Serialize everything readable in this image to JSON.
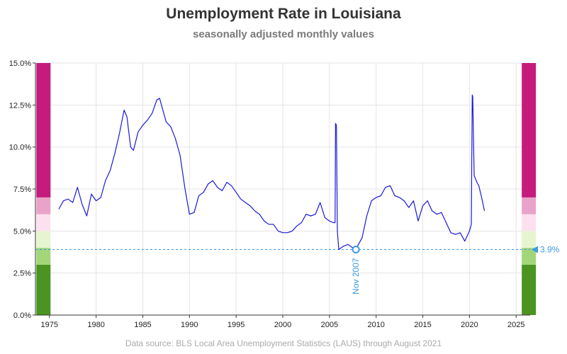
{
  "header": {
    "title": "Unemployment Rate in Louisiana",
    "subtitle": "seasonally adjusted monthly values"
  },
  "footer": {
    "source": "Data source: BLS Local Area Unemployment Statistics (LAUS) through August 2021"
  },
  "colors": {
    "line": "#1a1adb",
    "reference": "#3b9be8",
    "grid": "#e4e4e4",
    "band_colors": [
      "#4b9421",
      "#a3d679",
      "#e6f5d0",
      "#fde0ef",
      "#e9a3c9",
      "#c51b7d"
    ]
  },
  "chart_data": {
    "type": "line",
    "title": "Unemployment Rate in Louisiana",
    "subtitle": "seasonally adjusted monthly values",
    "xlabel": "",
    "ylabel": "",
    "xlim": [
      1973.5,
      2026.5
    ],
    "ylim": [
      0,
      15
    ],
    "x_ticks": [
      1975,
      1980,
      1985,
      1990,
      1995,
      2000,
      2005,
      2010,
      2015,
      2020,
      2025
    ],
    "y_ticks": [
      0,
      2.5,
      5,
      7.5,
      10,
      12.5,
      15
    ],
    "y_tick_labels": [
      "0.0%",
      "2.5%",
      "5.0%",
      "7.5%",
      "10.0%",
      "12.5%",
      "15.0%"
    ],
    "grid": true,
    "legend": "none",
    "color_bands": [
      {
        "from": 0,
        "to": 3,
        "color": "#4b9421"
      },
      {
        "from": 3,
        "to": 4,
        "color": "#a3d679"
      },
      {
        "from": 4,
        "to": 5,
        "color": "#e6f5d0"
      },
      {
        "from": 5,
        "to": 6,
        "color": "#fde0ef"
      },
      {
        "from": 6,
        "to": 7,
        "color": "#e9a3c9"
      },
      {
        "from": 7,
        "to": 15,
        "color": "#c51b7d"
      }
    ],
    "reference_line": {
      "value": 3.9,
      "label": "3.9%"
    },
    "marker": {
      "x": 2007.83,
      "y": 3.9,
      "label": "Nov 2007"
    },
    "series": [
      {
        "x": [
          1976.0,
          1976.5,
          1977.0,
          1977.5,
          1978.0,
          1978.5,
          1979.0,
          1979.5,
          1980.0,
          1980.5,
          1981.0,
          1981.5,
          1982.0,
          1982.5,
          1983.0,
          1983.3,
          1983.7,
          1984.0,
          1984.5,
          1985.0,
          1985.5,
          1986.0,
          1986.5,
          1986.8,
          1987.0,
          1987.5,
          1988.0,
          1988.5,
          1989.0,
          1989.5,
          1990.0,
          1990.5,
          1991.0,
          1991.5,
          1992.0,
          1992.5,
          1993.0,
          1993.5,
          1994.0,
          1994.5,
          1995.0,
          1995.5,
          1996.0,
          1996.5,
          1997.0,
          1997.5,
          1998.0,
          1998.5,
          1999.0,
          1999.5,
          2000.0,
          2000.5,
          2001.0,
          2001.5,
          2002.0,
          2002.5,
          2003.0,
          2003.5,
          2004.0,
          2004.5,
          2005.0,
          2005.4,
          2005.6,
          2005.65,
          2005.75,
          2005.85,
          2006.0,
          2006.5,
          2007.0,
          2007.5,
          2007.83,
          2008.0,
          2008.5,
          2009.0,
          2009.5,
          2010.0,
          2010.5,
          2011.0,
          2011.5,
          2012.0,
          2012.5,
          2013.0,
          2013.5,
          2014.0,
          2014.5,
          2015.0,
          2015.5,
          2016.0,
          2016.5,
          2017.0,
          2017.5,
          2018.0,
          2018.5,
          2019.0,
          2019.5,
          2020.0,
          2020.2,
          2020.3,
          2020.35,
          2020.5,
          2020.8,
          2021.0,
          2021.3,
          2021.6
        ],
        "y": [
          6.3,
          6.8,
          6.9,
          6.7,
          7.6,
          6.6,
          5.9,
          7.2,
          6.8,
          7.0,
          8.0,
          8.6,
          9.6,
          10.8,
          12.2,
          11.8,
          10.0,
          9.8,
          10.9,
          11.3,
          11.6,
          12.0,
          12.8,
          12.9,
          12.5,
          11.5,
          11.2,
          10.5,
          9.5,
          7.6,
          6.0,
          6.1,
          7.1,
          7.3,
          7.8,
          8.0,
          7.6,
          7.4,
          7.9,
          7.7,
          7.3,
          6.9,
          6.7,
          6.5,
          6.2,
          6.0,
          5.6,
          5.4,
          5.4,
          5.0,
          4.9,
          4.9,
          5.0,
          5.3,
          5.5,
          6.0,
          5.9,
          6.0,
          6.7,
          5.8,
          5.6,
          5.5,
          5.5,
          11.4,
          11.3,
          5.0,
          3.9,
          4.1,
          4.2,
          4.0,
          3.9,
          4.1,
          4.6,
          5.9,
          6.8,
          7.0,
          7.1,
          7.6,
          7.7,
          7.1,
          7.0,
          6.8,
          6.4,
          6.8,
          5.6,
          6.5,
          6.8,
          6.2,
          6.0,
          6.1,
          5.5,
          4.9,
          4.8,
          4.9,
          4.4,
          5.0,
          5.4,
          13.1,
          13.0,
          8.3,
          7.9,
          7.7,
          7.0,
          6.2
        ]
      }
    ]
  }
}
